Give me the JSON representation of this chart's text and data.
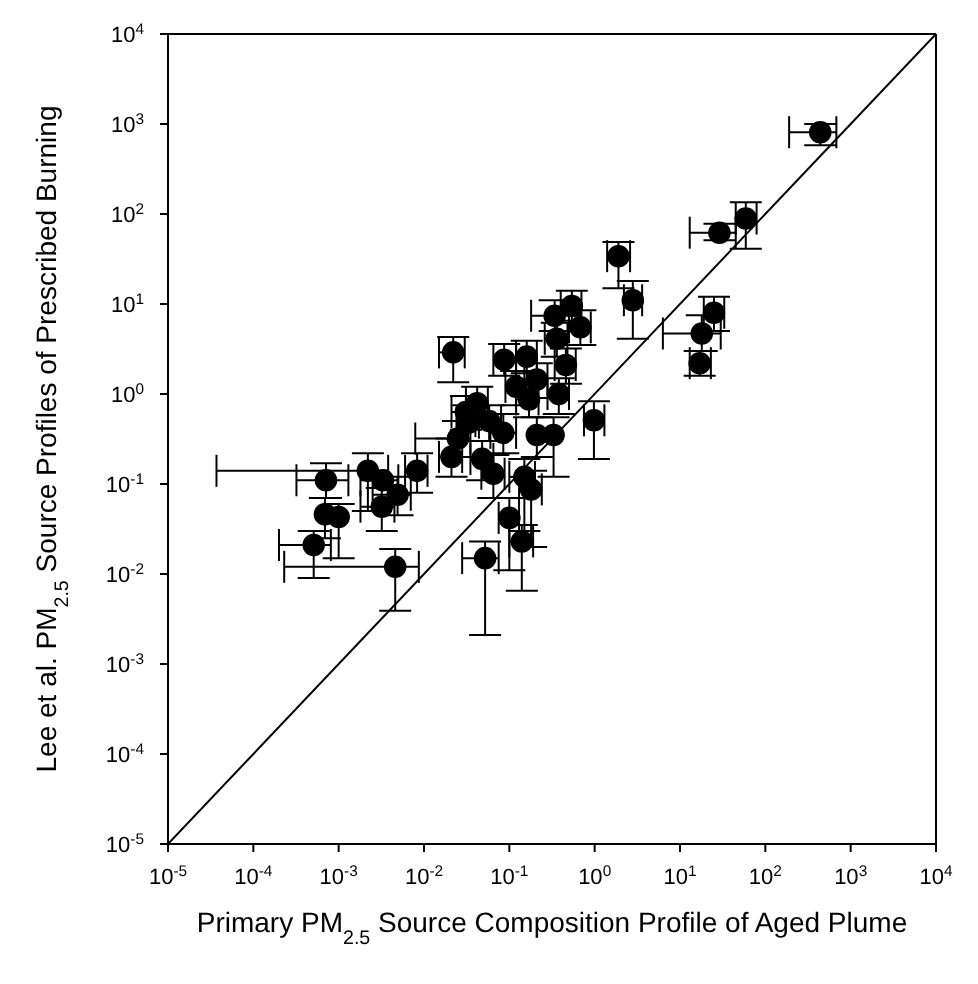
{
  "chart_data": {
    "type": "scatter",
    "xlabel": "Primary PM$_{2.5}$ Source Composition Profile of Aged Plume",
    "ylabel": "Lee et al. PM$_{2.5}$ Source Profiles of Prescribed Burning",
    "log": "xy",
    "grid": false,
    "legend": false,
    "marker": "circle",
    "xlim": [
      1e-05,
      10000
    ],
    "ylim": [
      1e-05,
      10000
    ],
    "xticks": [
      {
        "value": 1e-05,
        "label": "10$^{-5}$"
      },
      {
        "value": 0.0001,
        "label": "10$^{-4}$"
      },
      {
        "value": 0.001,
        "label": "10$^{-3}$"
      },
      {
        "value": 0.01,
        "label": "10$^{-2}$"
      },
      {
        "value": 0.1,
        "label": "10$^{-1}$"
      },
      {
        "value": 1,
        "label": "10$^{0}$"
      },
      {
        "value": 10,
        "label": "10$^{1}$"
      },
      {
        "value": 100,
        "label": "10$^{2}$"
      },
      {
        "value": 1000,
        "label": "10$^{3}$"
      },
      {
        "value": 10000,
        "label": "10$^{4}$"
      }
    ],
    "yticks": [
      {
        "value": 1e-05,
        "label": "10$^{-5}$"
      },
      {
        "value": 0.0001,
        "label": "10$^{-4}$"
      },
      {
        "value": 0.001,
        "label": "10$^{-3}$"
      },
      {
        "value": 0.01,
        "label": "10$^{-2}$"
      },
      {
        "value": 0.1,
        "label": "10$^{-1}$"
      },
      {
        "value": 1,
        "label": "10$^{0}$"
      },
      {
        "value": 10,
        "label": "10$^{1}$"
      },
      {
        "value": 100,
        "label": "10$^{2}$"
      },
      {
        "value": 1000,
        "label": "10$^{3}$"
      },
      {
        "value": 10000,
        "label": "10$^{4}$"
      }
    ],
    "series": [
      {
        "color": "#000000",
        "x": [
          440,
          29,
          59,
          1.9,
          2.8,
          0.54,
          0.34,
          0.68,
          0.36,
          0.022,
          0.087,
          0.16,
          0.46,
          0.21,
          0.12,
          0.17,
          0.38,
          0.042,
          0.031,
          0.033,
          0.058,
          0.085,
          0.21,
          0.33,
          0.98,
          0.025,
          0.021,
          0.048,
          0.065,
          0.15,
          0.18,
          0.00071,
          0.0022,
          0.0033,
          0.0083,
          0.0049,
          0.0032,
          0.00069,
          0.001,
          0.00051,
          0.0046,
          0.052,
          0.1,
          0.14,
          25,
          18,
          17
        ],
        "values": [
          810,
          62,
          89,
          34,
          11,
          9.5,
          7.4,
          5.5,
          4.1,
          2.9,
          2.4,
          2.6,
          2.1,
          1.45,
          1.2,
          0.87,
          1,
          0.79,
          0.63,
          0.48,
          0.5,
          0.37,
          0.35,
          0.35,
          0.51,
          0.32,
          0.2,
          0.19,
          0.13,
          0.12,
          0.087,
          0.11,
          0.14,
          0.11,
          0.14,
          0.076,
          0.056,
          0.046,
          0.043,
          0.021,
          0.012,
          0.015,
          0.042,
          0.023,
          8,
          4.7,
          2.2
        ],
        "errors": [
          [
            580,
            1000
          ],
          [
            51,
            78
          ],
          [
            41,
            135
          ],
          [
            15,
            49
          ],
          [
            4.1,
            18
          ],
          [
            6.5,
            14
          ],
          [
            5,
            11
          ],
          [
            3.5,
            8.5
          ],
          [
            2.6,
            6.2
          ],
          [
            1.35,
            4.3
          ],
          [
            1.6,
            3.6
          ],
          [
            1.7,
            3.9
          ],
          [
            1.3,
            3.2
          ],
          [
            0.9,
            2.2
          ],
          [
            0.75,
            1.8
          ],
          [
            0.55,
            1.3
          ],
          [
            0.6,
            1.5
          ],
          [
            0.5,
            1.2
          ],
          [
            0.4,
            0.95
          ],
          [
            0.3,
            0.75
          ],
          [
            0.3,
            0.75
          ],
          [
            0.22,
            0.6
          ],
          [
            0.2,
            0.55
          ],
          [
            0.12,
            0.55
          ],
          [
            0.19,
            0.83
          ],
          [
            0.2,
            0.5
          ],
          [
            0.12,
            0.32
          ],
          [
            0.11,
            0.3
          ],
          [
            0.07,
            0.21
          ],
          [
            0.03,
            0.19
          ],
          [
            0.02,
            0.14
          ],
          [
            0.07,
            0.17
          ],
          [
            0.05,
            0.22
          ],
          null,
          [
            0.08,
            0.22
          ],
          [
            0.045,
            0.12
          ],
          [
            0.03,
            0.09
          ],
          [
            0.025,
            0.07
          ],
          [
            0.015,
            0.06
          ],
          [
            0.009,
            0.03
          ],
          [
            0.0039,
            0.019
          ],
          [
            0.0021,
            0.023
          ],
          [
            0.011,
            0.07
          ],
          [
            0.0065,
            0.035
          ],
          [
            5,
            12
          ],
          [
            3,
            7.5
          ],
          [
            1.6,
            3
          ]
        ],
        "xerrors": [
          [
            190,
            680
          ],
          [
            13,
            45
          ],
          [
            45,
            79
          ],
          [
            1.4,
            2.6
          ],
          [
            2.2,
            3.6
          ],
          [
            0.4,
            0.7
          ],
          [
            0.18,
            0.66
          ],
          [
            0.5,
            0.9
          ],
          [
            0.26,
            0.48
          ],
          [
            0.015,
            0.03
          ],
          [
            0.065,
            0.12
          ],
          [
            0.12,
            0.21
          ],
          [
            0.34,
            0.6
          ],
          [
            0.15,
            0.28
          ],
          [
            0.09,
            0.16
          ],
          [
            0.12,
            0.22
          ],
          [
            0.28,
            0.5
          ],
          [
            0.031,
            0.056
          ],
          [
            0.021,
            0.04
          ],
          [
            0.024,
            0.044
          ],
          [
            0.04,
            0.08
          ],
          [
            0.06,
            0.12
          ],
          null,
          null,
          [
            0.75,
            1.3
          ],
          [
            0.0079,
            0.035
          ],
          [
            0.015,
            0.028
          ],
          [
            0.035,
            0.065
          ],
          [
            0.047,
            0.088
          ],
          [
            0.1,
            0.2
          ],
          [
            0.13,
            0.24
          ],
          [
            0.00032,
            0.0013
          ],
          [
            3.7e-05,
            0.0038
          ],
          [
            0.0018,
            0.005
          ],
          [
            0.006,
            0.011
          ],
          [
            0.0025,
            0.007
          ],
          [
            0.0018,
            0.0045
          ],
          null,
          null,
          [
            0.0002,
            0.00081
          ],
          [
            0.00023,
            0.0087
          ],
          [
            0.028,
            0.075
          ],
          [
            0.075,
            0.13
          ],
          [
            0.1,
            0.19
          ],
          [
            19,
            33
          ],
          [
            6.3,
            30
          ],
          [
            13,
            23
          ]
        ]
      },
      {
        "type": "line",
        "marker": "none",
        "color": "#000000",
        "x": [
          1e-05,
          10000
        ],
        "values": [
          1e-05,
          10000
        ]
      }
    ]
  }
}
